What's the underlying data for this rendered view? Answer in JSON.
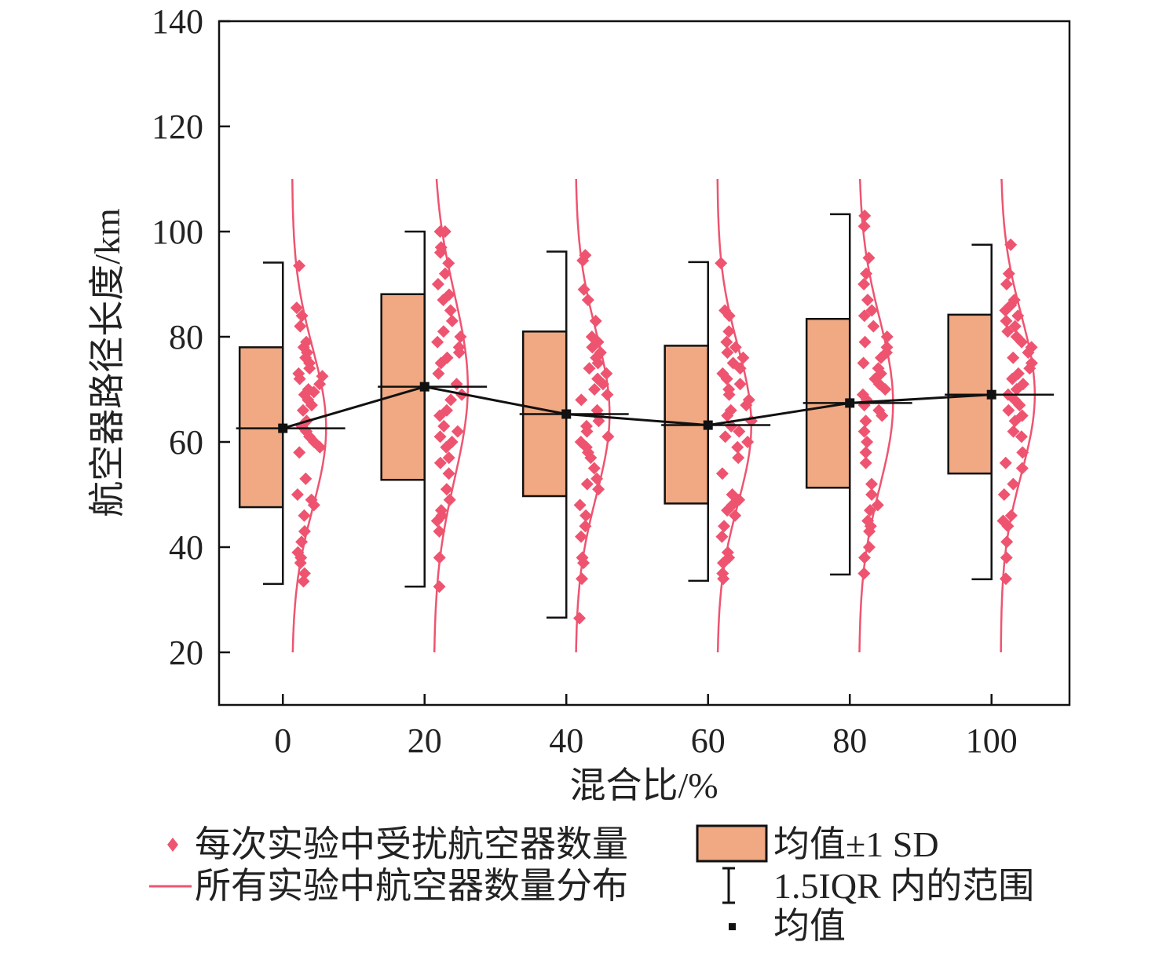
{
  "chart_data": {
    "type": "box",
    "xlabel": "混合比/%",
    "ylabel": "航空器路径长度/km",
    "x_ticks": [
      "0",
      "20",
      "40",
      "60",
      "80",
      "100"
    ],
    "y_ticks": [
      "20",
      "40",
      "60",
      "80",
      "100",
      "120",
      "140"
    ],
    "xlim": [
      -9,
      111
    ],
    "ylim": [
      10,
      140
    ],
    "colors": {
      "box_fill": "#f0a982",
      "points": "#ee5470",
      "curve": "#ee5470",
      "line": "#111111"
    },
    "groups": [
      {
        "x": 0,
        "mean": 62.6,
        "sd_low": 47.6,
        "sd_high": 78.0,
        "whisker_low": 33.0,
        "whisker_high": 94.1,
        "points": [
          93.5,
          85.5,
          84,
          82,
          79,
          78,
          77,
          76,
          75,
          74,
          73,
          72.5,
          72,
          71,
          70,
          69.5,
          69,
          68,
          67,
          66,
          64,
          63,
          62,
          61,
          60,
          59,
          58,
          53,
          50,
          49,
          48,
          46,
          43,
          41,
          39,
          38,
          37,
          35,
          33.5
        ]
      },
      {
        "x": 20,
        "mean": 70.5,
        "sd_low": 52.8,
        "sd_high": 88.1,
        "whisker_low": 32.5,
        "whisker_high": 100.0,
        "points": [
          100,
          100,
          97,
          96,
          94,
          92,
          90,
          88,
          87,
          85,
          83,
          81,
          80,
          79,
          78,
          77,
          76,
          75,
          73,
          71,
          69,
          68,
          66,
          65,
          63,
          62,
          61,
          60,
          59,
          57,
          56,
          54,
          51,
          49,
          47,
          46,
          45,
          43,
          38,
          32.5
        ]
      },
      {
        "x": 40,
        "mean": 65.3,
        "sd_low": 49.7,
        "sd_high": 81.0,
        "whisker_low": 26.6,
        "whisker_high": 96.2,
        "points": [
          95.5,
          94.5,
          89,
          87,
          83,
          80,
          79,
          78,
          77,
          76,
          75,
          74,
          73,
          72,
          71,
          70,
          69,
          68,
          66,
          65,
          64,
          63,
          62,
          61,
          60,
          59,
          58,
          57,
          55,
          53,
          52,
          51,
          48,
          46,
          44,
          42,
          38,
          37,
          34,
          26.5
        ]
      },
      {
        "x": 60,
        "mean": 63.2,
        "sd_low": 48.3,
        "sd_high": 78.3,
        "whisker_low": 33.6,
        "whisker_high": 94.2,
        "points": [
          94,
          85,
          84,
          81,
          79,
          78,
          77,
          76,
          75,
          74,
          73,
          72,
          71,
          70,
          69,
          68,
          67,
          66,
          65,
          64,
          63,
          62,
          61,
          60,
          59,
          57,
          54,
          50,
          49,
          48,
          47,
          46,
          44,
          42,
          39,
          38,
          37,
          35,
          34
        ]
      },
      {
        "x": 80,
        "mean": 67.4,
        "sd_low": 51.3,
        "sd_high": 83.4,
        "whisker_low": 34.8,
        "whisker_high": 103.3,
        "points": [
          103,
          101,
          95,
          92,
          90,
          87,
          85,
          84,
          82,
          80,
          79,
          78,
          77,
          76,
          75,
          74,
          73,
          72,
          71,
          70,
          69,
          68,
          67,
          66,
          65,
          64,
          62,
          60,
          58,
          56,
          52,
          50,
          48,
          47,
          45,
          44,
          43,
          40,
          38,
          35
        ]
      },
      {
        "x": 100,
        "mean": 69.0,
        "sd_low": 54.0,
        "sd_high": 84.2,
        "whisker_low": 33.9,
        "whisker_high": 97.5,
        "points": [
          97.5,
          92,
          90,
          87,
          86,
          85,
          84,
          83,
          82,
          81,
          80,
          79,
          78,
          77,
          76,
          75,
          74,
          73,
          72,
          71,
          70,
          69,
          68,
          67,
          66,
          65,
          64,
          62,
          61,
          58,
          56,
          55,
          52,
          50,
          46,
          45,
          44,
          41,
          38,
          34
        ]
      }
    ],
    "curve_range": [
      20,
      110
    ],
    "legend": {
      "points": "每次实验中受扰航空器数量",
      "curve": "所有实验中航空器数量分布",
      "box": "均值±1 SD",
      "whisker": "1.5IQR 内的范围",
      "mean": "均值"
    }
  }
}
